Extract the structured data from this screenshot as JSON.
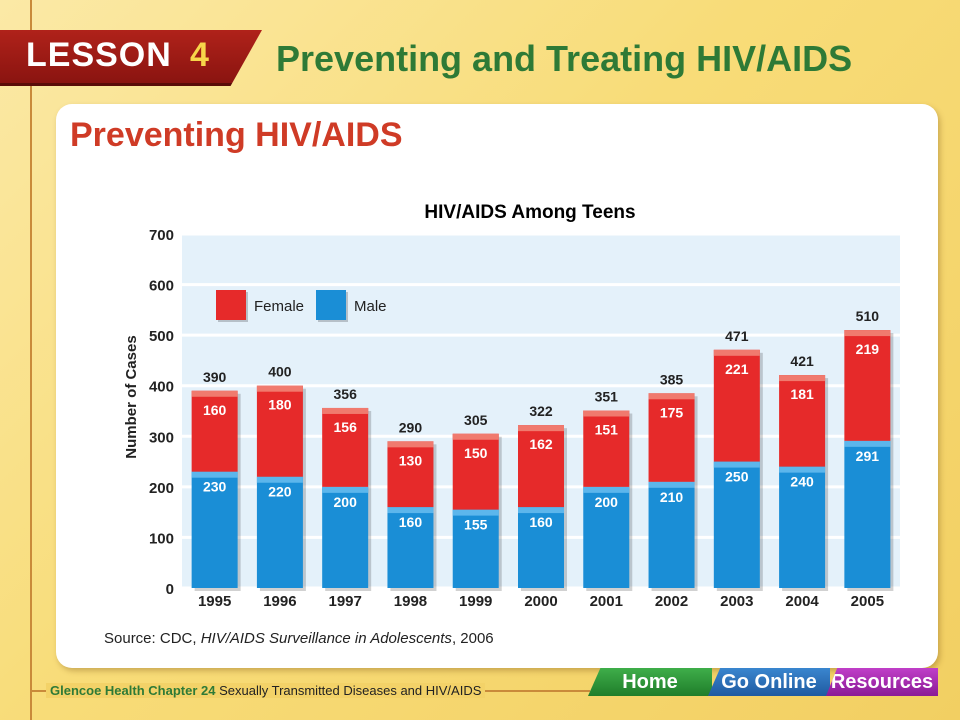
{
  "header": {
    "lesson_word": "LESSON",
    "lesson_number": "4",
    "title": "Preventing and Treating HIV/AIDS"
  },
  "section": {
    "title": "Preventing HIV/AIDS"
  },
  "chart_data": {
    "type": "bar",
    "stacked": true,
    "title": "HIV/AIDS Among Teens",
    "xlabel": "",
    "ylabel": "Number of Cases",
    "ylim": [
      0,
      700
    ],
    "yticks": [
      0,
      100,
      200,
      300,
      400,
      500,
      600,
      700
    ],
    "categories": [
      "1995",
      "1996",
      "1997",
      "1998",
      "1999",
      "2000",
      "2001",
      "2002",
      "2003",
      "2004",
      "2005"
    ],
    "series": [
      {
        "name": "Male",
        "color": "#1a8ed6",
        "values": [
          230,
          220,
          200,
          160,
          155,
          160,
          200,
          210,
          250,
          240,
          291
        ]
      },
      {
        "name": "Female",
        "color": "#e62a2a",
        "values": [
          160,
          180,
          156,
          130,
          150,
          162,
          151,
          175,
          221,
          181,
          219
        ]
      }
    ],
    "totals": [
      390,
      400,
      356,
      290,
      305,
      322,
      351,
      385,
      471,
      421,
      510
    ],
    "legend": "top-left",
    "grid": true,
    "source": "Source: CDC, ",
    "source_italic": "HIV/AIDS Surveillance in Adolescents",
    "source_year": ", 2006"
  },
  "footer": {
    "brand": "Glencoe Health",
    "chapter": "Chapter 24",
    "chapter_title": "Sexually Transmitted Diseases and HIV/AIDS"
  },
  "nav": {
    "home": "Home",
    "online": "Go Online",
    "resources": "Resources"
  }
}
